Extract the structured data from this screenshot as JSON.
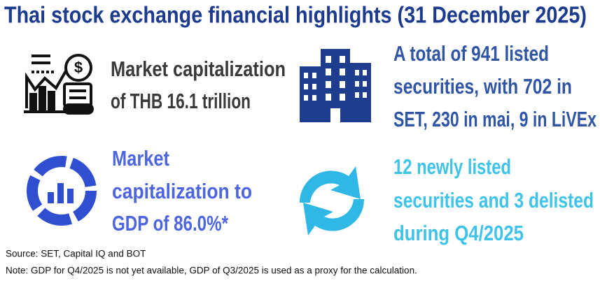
{
  "title": "Thai stock exchange financial highlights (31 December 2025)",
  "highlights": [
    {
      "lines": [
        "Market capitalization",
        "of THB 16.1 trillion"
      ]
    },
    {
      "lines": [
        "A total of 941 listed",
        "securities, with 702 in",
        "SET, 230 in mai, 9 in LiVEx"
      ]
    },
    {
      "lines": [
        "Market",
        "capitalization to",
        "GDP of 86.0%*"
      ]
    },
    {
      "lines": [
        "12 newly listed",
        "securities and 3 delisted",
        "during Q4/2025"
      ]
    }
  ],
  "footnotes": {
    "source": "Source: SET, Capital IQ and BOT",
    "note": "Note: GDP for Q4/2025 is not yet available, GDP of Q3/2025 is used as a proxy for the calculation."
  }
}
